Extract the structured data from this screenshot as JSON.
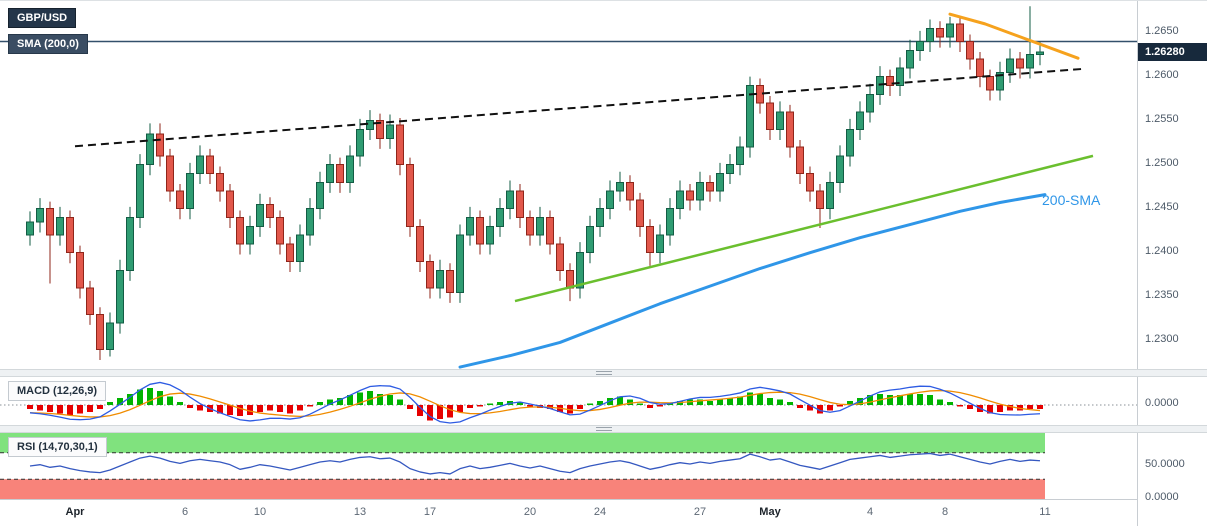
{
  "header": {
    "symbol": "GBP/USD",
    "sma_label": "SMA (200,0)"
  },
  "chart_data": {
    "type": "candlestick",
    "title": "GBP/USD",
    "price_axis": {
      "ticks": [
        {
          "label": "1.2650",
          "value": 1.265
        },
        {
          "label": "1.2600",
          "value": 1.26
        },
        {
          "label": "1.2550",
          "value": 1.255
        },
        {
          "label": "1.2500",
          "value": 1.25
        },
        {
          "label": "1.2450",
          "value": 1.245
        },
        {
          "label": "1.2400",
          "value": 1.24
        },
        {
          "label": "1.2350",
          "value": 1.235
        },
        {
          "label": "1.2300",
          "value": 1.23
        }
      ],
      "current_price_label": "1.26280",
      "current_price": 1.2628
    },
    "time_axis": {
      "ticks": [
        {
          "label": "Apr",
          "index": 4.5,
          "bold": true
        },
        {
          "label": "6",
          "index": 15.5,
          "bold": false
        },
        {
          "label": "10",
          "index": 23,
          "bold": false
        },
        {
          "label": "13",
          "index": 33,
          "bold": false
        },
        {
          "label": "17",
          "index": 40,
          "bold": false
        },
        {
          "label": "20",
          "index": 50,
          "bold": false
        },
        {
          "label": "24",
          "index": 57,
          "bold": false
        },
        {
          "label": "27",
          "index": 67,
          "bold": false
        },
        {
          "label": "May",
          "index": 74,
          "bold": true
        },
        {
          "label": "4",
          "index": 84,
          "bold": false
        },
        {
          "label": "8",
          "index": 91.5,
          "bold": false
        },
        {
          "label": "11",
          "index": 101.5,
          "bold": false
        }
      ]
    },
    "candles": [
      [
        1.242,
        1.2447,
        1.2408,
        1.2435
      ],
      [
        1.2435,
        1.2462,
        1.2423,
        1.245
      ],
      [
        1.245,
        1.2458,
        1.2365,
        1.242
      ],
      [
        1.242,
        1.2452,
        1.2408,
        1.244
      ],
      [
        1.244,
        1.2448,
        1.2388,
        1.24
      ],
      [
        1.24,
        1.2408,
        1.2348,
        1.236
      ],
      [
        1.236,
        1.2368,
        1.2318,
        1.233
      ],
      [
        1.233,
        1.2338,
        1.2278,
        1.229
      ],
      [
        1.229,
        1.2332,
        1.2282,
        1.232
      ],
      [
        1.232,
        1.2392,
        1.2308,
        1.238
      ],
      [
        1.238,
        1.2452,
        1.2368,
        1.244
      ],
      [
        1.244,
        1.2512,
        1.2428,
        1.25
      ],
      [
        1.25,
        1.2547,
        1.2488,
        1.2535
      ],
      [
        1.2535,
        1.2547,
        1.2498,
        1.251
      ],
      [
        1.251,
        1.2518,
        1.2458,
        1.247
      ],
      [
        1.247,
        1.2478,
        1.2438,
        1.245
      ],
      [
        1.245,
        1.2502,
        1.2438,
        1.249
      ],
      [
        1.249,
        1.2522,
        1.2478,
        1.251
      ],
      [
        1.251,
        1.2518,
        1.2478,
        1.249
      ],
      [
        1.249,
        1.2498,
        1.2458,
        1.247
      ],
      [
        1.247,
        1.2478,
        1.2428,
        1.244
      ],
      [
        1.244,
        1.2448,
        1.2398,
        1.241
      ],
      [
        1.241,
        1.2442,
        1.2398,
        1.243
      ],
      [
        1.243,
        1.2467,
        1.2418,
        1.2455
      ],
      [
        1.2455,
        1.2463,
        1.2428,
        1.244
      ],
      [
        1.244,
        1.2448,
        1.2398,
        1.241
      ],
      [
        1.241,
        1.2418,
        1.2378,
        1.239
      ],
      [
        1.239,
        1.2432,
        1.2378,
        1.242
      ],
      [
        1.242,
        1.2462,
        1.2408,
        1.245
      ],
      [
        1.245,
        1.2492,
        1.2438,
        1.248
      ],
      [
        1.248,
        1.2512,
        1.2468,
        1.25
      ],
      [
        1.25,
        1.2508,
        1.2468,
        1.248
      ],
      [
        1.248,
        1.2522,
        1.2468,
        1.251
      ],
      [
        1.251,
        1.2552,
        1.2498,
        1.254
      ],
      [
        1.254,
        1.2562,
        1.2528,
        1.255
      ],
      [
        1.255,
        1.2558,
        1.2518,
        1.253
      ],
      [
        1.253,
        1.2557,
        1.2518,
        1.2545
      ],
      [
        1.2545,
        1.2553,
        1.2488,
        1.25
      ],
      [
        1.25,
        1.2508,
        1.2418,
        1.243
      ],
      [
        1.243,
        1.2438,
        1.2378,
        1.239
      ],
      [
        1.239,
        1.2398,
        1.2348,
        1.236
      ],
      [
        1.236,
        1.2392,
        1.2348,
        1.238
      ],
      [
        1.238,
        1.2388,
        1.2343,
        1.2355
      ],
      [
        1.2355,
        1.2432,
        1.2343,
        1.242
      ],
      [
        1.242,
        1.2452,
        1.2408,
        1.244
      ],
      [
        1.244,
        1.2448,
        1.2398,
        1.241
      ],
      [
        1.241,
        1.2442,
        1.2398,
        1.243
      ],
      [
        1.243,
        1.2462,
        1.2418,
        1.245
      ],
      [
        1.245,
        1.2482,
        1.2438,
        1.247
      ],
      [
        1.247,
        1.2478,
        1.2428,
        1.244
      ],
      [
        1.244,
        1.2448,
        1.2408,
        1.242
      ],
      [
        1.242,
        1.2452,
        1.2408,
        1.244
      ],
      [
        1.244,
        1.2448,
        1.2398,
        1.241
      ],
      [
        1.241,
        1.2418,
        1.2368,
        1.238
      ],
      [
        1.238,
        1.2388,
        1.2345,
        1.236
      ],
      [
        1.236,
        1.2412,
        1.2348,
        1.24
      ],
      [
        1.24,
        1.2442,
        1.2388,
        1.243
      ],
      [
        1.243,
        1.2462,
        1.2418,
        1.245
      ],
      [
        1.245,
        1.2482,
        1.2438,
        1.247
      ],
      [
        1.247,
        1.2492,
        1.2458,
        1.248
      ],
      [
        1.248,
        1.2488,
        1.2448,
        1.246
      ],
      [
        1.246,
        1.2468,
        1.2418,
        1.243
      ],
      [
        1.243,
        1.2438,
        1.2385,
        1.24
      ],
      [
        1.24,
        1.2432,
        1.2388,
        1.242
      ],
      [
        1.242,
        1.2462,
        1.2408,
        1.245
      ],
      [
        1.245,
        1.2482,
        1.2438,
        1.247
      ],
      [
        1.247,
        1.2478,
        1.2448,
        1.246
      ],
      [
        1.246,
        1.2492,
        1.2448,
        1.248
      ],
      [
        1.248,
        1.2488,
        1.2458,
        1.247
      ],
      [
        1.247,
        1.2502,
        1.2458,
        1.249
      ],
      [
        1.249,
        1.2512,
        1.2478,
        1.25
      ],
      [
        1.25,
        1.2532,
        1.2488,
        1.252
      ],
      [
        1.252,
        1.26,
        1.2508,
        1.259
      ],
      [
        1.259,
        1.2598,
        1.2558,
        1.257
      ],
      [
        1.257,
        1.2578,
        1.2528,
        1.254
      ],
      [
        1.254,
        1.2572,
        1.2528,
        1.256
      ],
      [
        1.256,
        1.2568,
        1.2508,
        1.252
      ],
      [
        1.252,
        1.2528,
        1.2478,
        1.249
      ],
      [
        1.249,
        1.2498,
        1.2458,
        1.247
      ],
      [
        1.247,
        1.2478,
        1.2428,
        1.245
      ],
      [
        1.245,
        1.2492,
        1.2438,
        1.248
      ],
      [
        1.248,
        1.2522,
        1.2468,
        1.251
      ],
      [
        1.251,
        1.2552,
        1.2498,
        1.254
      ],
      [
        1.254,
        1.2572,
        1.2528,
        1.256
      ],
      [
        1.256,
        1.2592,
        1.2548,
        1.258
      ],
      [
        1.258,
        1.2612,
        1.2568,
        1.26
      ],
      [
        1.26,
        1.2608,
        1.2578,
        1.259
      ],
      [
        1.259,
        1.2622,
        1.2578,
        1.261
      ],
      [
        1.261,
        1.2642,
        1.2598,
        1.263
      ],
      [
        1.263,
        1.2652,
        1.2618,
        1.264
      ],
      [
        1.264,
        1.2665,
        1.2628,
        1.2655
      ],
      [
        1.2655,
        1.2663,
        1.2633,
        1.2645
      ],
      [
        1.2645,
        1.2668,
        1.2633,
        1.266
      ],
      [
        1.266,
        1.2668,
        1.2628,
        1.264
      ],
      [
        1.264,
        1.2648,
        1.2608,
        1.262
      ],
      [
        1.262,
        1.2628,
        1.2588,
        1.26
      ],
      [
        1.26,
        1.2608,
        1.2573,
        1.2585
      ],
      [
        1.2585,
        1.2617,
        1.2573,
        1.2605
      ],
      [
        1.2605,
        1.2632,
        1.2593,
        1.262
      ],
      [
        1.262,
        1.2628,
        1.2598,
        1.261
      ],
      [
        1.261,
        1.268,
        1.2598,
        1.2625
      ],
      [
        1.2625,
        1.264,
        1.2613,
        1.2628
      ]
    ],
    "overlays": {
      "sma200_horizontal": {
        "price": 1.264
      },
      "dashed_trendline": {
        "from_index": 4.5,
        "from_price": 1.2521,
        "to_index": 105.5,
        "to_price": 1.2609
      },
      "orange_resistance": {
        "points": [
          [
            92,
            1.2671
          ],
          [
            95.5,
            1.266
          ],
          [
            104.8,
            1.2621
          ]
        ]
      },
      "green_support": {
        "from_index": 48.5,
        "from_price": 1.2345,
        "to_index": 106.3,
        "to_price": 1.251
      },
      "sma200_curve": {
        "label": "200-SMA",
        "points": [
          [
            43,
            1.227
          ],
          [
            48,
            1.2283
          ],
          [
            53,
            1.2298
          ],
          [
            58,
            1.232
          ],
          [
            63,
            1.2342
          ],
          [
            68,
            1.2362
          ],
          [
            73,
            1.2382
          ],
          [
            78,
            1.24
          ],
          [
            83,
            1.2417
          ],
          [
            88,
            1.2432
          ],
          [
            93,
            1.2447
          ],
          [
            97,
            1.2457
          ],
          [
            101.5,
            1.2466
          ]
        ]
      }
    },
    "macd": {
      "label": "MACD (12,26,9)",
      "axis_label": "0.0000",
      "hist_1e4": [
        -3,
        -4,
        -5,
        -6,
        -7,
        -6,
        -5,
        -3,
        2,
        5,
        8,
        11,
        12,
        10,
        6,
        2,
        -2,
        -4,
        -5,
        -6,
        -7,
        -8,
        -7,
        -5,
        -4,
        -5,
        -6,
        -4,
        -1,
        2,
        4,
        5,
        7,
        9,
        10,
        8,
        7,
        4,
        -3,
        -8,
        -11,
        -10,
        -9,
        -5,
        -2,
        -1,
        1,
        2,
        3,
        2,
        -1,
        -2,
        -3,
        -5,
        -6,
        -3,
        1,
        3,
        5,
        6,
        4,
        1,
        -2,
        -1,
        1,
        3,
        4,
        4,
        3,
        4,
        5,
        6,
        9,
        8,
        5,
        4,
        2,
        -2,
        -4,
        -6,
        -4,
        -1,
        3,
        5,
        7,
        8,
        7,
        7,
        8,
        8,
        7,
        4,
        2,
        -1,
        -3,
        -5,
        -6,
        -5,
        -4,
        -4,
        -3,
        -3
      ]
    },
    "rsi": {
      "label": "RSI (14,70,30,1)",
      "upper_band": 70,
      "lower_band": 30,
      "axis_labels": [
        {
          "label": "50.0000",
          "value": 50
        },
        {
          "label": "0.0000",
          "value": 0
        }
      ],
      "values": [
        50,
        52,
        48,
        50,
        46,
        43,
        41,
        40,
        44,
        50,
        56,
        62,
        65,
        62,
        57,
        54,
        58,
        60,
        58,
        56,
        52,
        45,
        48,
        52,
        50,
        47,
        44,
        48,
        52,
        56,
        58,
        56,
        60,
        63,
        64,
        61,
        62,
        56,
        46,
        41,
        38,
        40,
        38,
        46,
        50,
        46,
        48,
        51,
        54,
        50,
        47,
        50,
        46,
        42,
        40,
        46,
        50,
        53,
        56,
        58,
        55,
        50,
        45,
        48,
        52,
        55,
        53,
        56,
        54,
        57,
        59,
        61,
        68,
        64,
        59,
        61,
        56,
        51,
        48,
        45,
        50,
        55,
        60,
        62,
        64,
        66,
        63,
        65,
        67,
        68,
        69,
        66,
        68,
        64,
        60,
        56,
        53,
        57,
        60,
        57,
        59,
        58
      ]
    },
    "colors": {
      "candle_up": "#2f9c72",
      "candle_up_stroke": "#135c44",
      "candle_down": "#e2574b",
      "candle_down_stroke": "#8f251a",
      "macd_hist_up": "#00b300",
      "macd_hist_down": "#e60000",
      "macd_line": "#2d5be3",
      "macd_signal": "#f08c00",
      "rsi_line": "#3558c0",
      "rsi_upper_band": "#80e27e",
      "rsi_lower_band": "#f8837a",
      "band_edge": "#333333",
      "trend_dashed": "#111111",
      "trend_orange": "#f6a21d",
      "trend_green": "#6abf2e",
      "sma_curve_blue": "#2f96e8",
      "sma_horizontal": "#33506b"
    }
  }
}
